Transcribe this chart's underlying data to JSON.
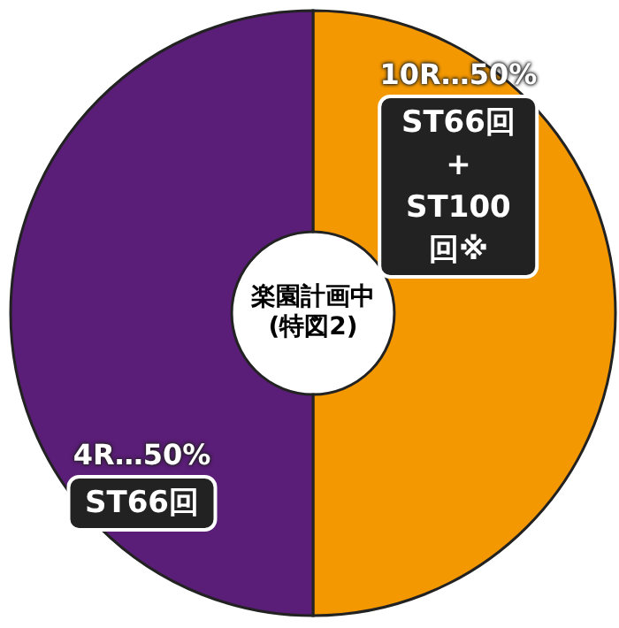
{
  "chart_data": {
    "type": "donut",
    "title": "楽園計画中 (特図2)",
    "categories": [
      "10R…50%",
      "4R…50%"
    ],
    "values": [
      50,
      50
    ],
    "colors": [
      "#f39800",
      "#5b1e78"
    ],
    "annotations": [
      "ST66回+ ST100回※",
      "ST66回"
    ]
  }
}
